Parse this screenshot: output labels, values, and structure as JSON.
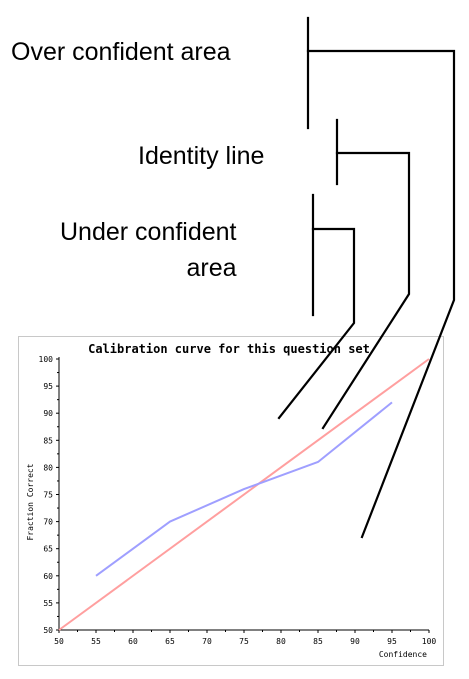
{
  "annotations": {
    "over_confident": "Over confident area",
    "identity_line": "Identity line",
    "under_confident_line1": "Under confident",
    "under_confident_line2": "area"
  },
  "colors": {
    "identity": "#ff9f9f",
    "calibration": "#9f9fff",
    "axis": "#000000",
    "annotation_lines": "#000000"
  },
  "chart_data": {
    "type": "line",
    "title": "Calibration curve for this question set",
    "xlabel": "Confidence",
    "ylabel": "Fraction Correct",
    "xlim": [
      50,
      100
    ],
    "ylim": [
      50,
      100
    ],
    "x_ticks": [
      50,
      55,
      60,
      65,
      70,
      75,
      80,
      85,
      90,
      95,
      100
    ],
    "y_ticks": [
      50,
      55,
      60,
      65,
      70,
      75,
      80,
      85,
      90,
      95,
      100
    ],
    "grid": false,
    "series": [
      {
        "x": [
          50,
          100
        ],
        "y": [
          50,
          100
        ]
      },
      {
        "x": [
          55,
          65,
          75,
          85,
          95
        ],
        "y": [
          60,
          70,
          76,
          81,
          92
        ]
      }
    ]
  }
}
